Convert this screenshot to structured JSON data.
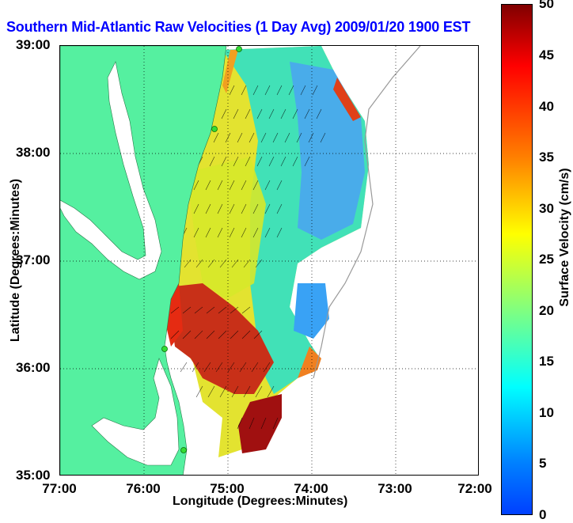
{
  "title": "Southern Mid-Atlantic Raw Velocities (1 Day Avg) 2009/01/20 1900 EST",
  "map": {
    "xlabel": "Longitude (Degrees:Minutes)",
    "ylabel": "Latitude (Degrees:Minutes)",
    "x_ticks": [
      "77:00",
      "76:00",
      "75:00",
      "74:00",
      "73:00",
      "72:00"
    ],
    "y_ticks": [
      "39:00",
      "38:00",
      "37:00",
      "36:00",
      "35:00"
    ],
    "lon_range": [
      -77,
      -72
    ],
    "lat_range": [
      35,
      39
    ],
    "land_color": "#55f0a0",
    "grid": "dotted"
  },
  "colorbar": {
    "label": "Surface Velocity (cm/s)",
    "ticks": [
      "50",
      "45",
      "40",
      "35",
      "30",
      "25",
      "20",
      "15",
      "10",
      "5",
      "0"
    ],
    "range": [
      0,
      50
    ],
    "colormap": "jet"
  },
  "stations_icon": "green-dot-icon"
}
